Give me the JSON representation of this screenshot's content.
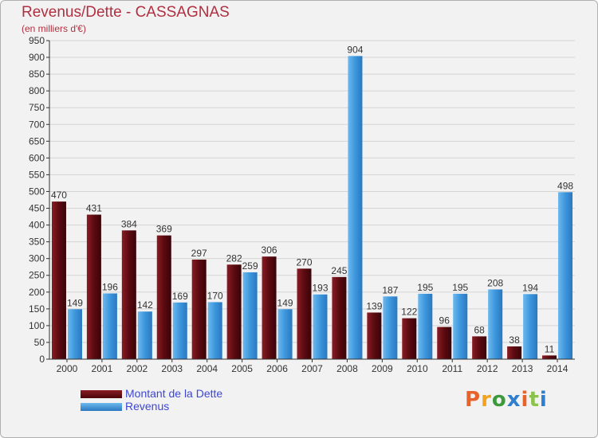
{
  "header": {
    "title": "Revenus/Dette - CASSAGNAS",
    "subtitle": "(en milliers d'€)"
  },
  "colors": {
    "dette": "#6b1016",
    "revenus": "#3c96dc",
    "title": "#b03040",
    "legend_text": "#3d47d6"
  },
  "brand": {
    "text": "Proxiti"
  },
  "chart_data": {
    "type": "bar",
    "title": "Revenus/Dette - CASSAGNAS",
    "subtitle": "(en milliers d'€)",
    "xlabel": "",
    "ylabel": "",
    "categories": [
      "2000",
      "2001",
      "2002",
      "2003",
      "2004",
      "2005",
      "2006",
      "2007",
      "2008",
      "2009",
      "2010",
      "2011",
      "2012",
      "2013",
      "2014"
    ],
    "series": [
      {
        "name": "Montant de la Dette",
        "values": [
          470,
          431,
          384,
          369,
          297,
          282,
          306,
          270,
          245,
          139,
          122,
          96,
          68,
          38,
          11
        ]
      },
      {
        "name": "Revenus",
        "values": [
          149,
          196,
          142,
          169,
          170,
          259,
          149,
          193,
          904,
          187,
          195,
          195,
          208,
          194,
          498
        ]
      }
    ],
    "ylim": [
      0,
      950
    ],
    "yticks": [
      0,
      50,
      100,
      150,
      200,
      250,
      300,
      350,
      400,
      450,
      500,
      550,
      600,
      650,
      700,
      750,
      800,
      850,
      900,
      950
    ],
    "grid": true,
    "legend_position": "bottom-left"
  }
}
